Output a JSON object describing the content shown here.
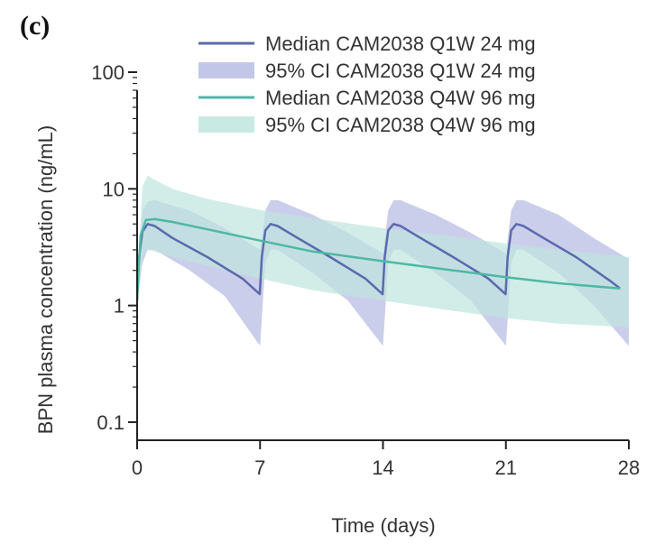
{
  "panel_label": "(c)",
  "colors": {
    "q1w_line": "#5b6aad",
    "q1w_band": "#b9bde3",
    "q4w_line": "#4db8a4",
    "q4w_band": "#bfe6de",
    "axis": "#222222"
  },
  "chart_data": {
    "type": "line",
    "xlabel": "Time (days)",
    "ylabel": "BPN plasma concentration (ng/mL)",
    "xlim": [
      0,
      28
    ],
    "ylim": [
      0.07,
      100
    ],
    "y_scale": "log",
    "x_ticks": [
      0,
      7,
      14,
      21,
      28
    ],
    "x_tick_labels": [
      "0",
      "7",
      "14",
      "21",
      "28"
    ],
    "y_ticks": [
      0.1,
      1,
      10,
      100
    ],
    "y_tick_labels": [
      "0.1",
      "1",
      "10",
      "100"
    ],
    "legend_position": "top-right",
    "legend": [
      {
        "label": "Median CAM2038 Q1W 24 mg",
        "kind": "line",
        "color": "#5b6aad"
      },
      {
        "label": "95% CI CAM2038 Q1W 24 mg",
        "kind": "band",
        "color": "#b9bde3"
      },
      {
        "label": "Median CAM2038 Q4W 96 mg",
        "kind": "line",
        "color": "#4db8a4"
      },
      {
        "label": "95% CI CAM2038 Q4W 96 mg",
        "kind": "band",
        "color": "#bfe6de"
      }
    ],
    "series": [
      {
        "name": "Median CAM2038 Q1W 24 mg",
        "x": [
          0,
          0.1,
          0.3,
          0.6,
          1,
          2,
          4,
          6,
          6.98,
          7.1,
          7.3,
          7.6,
          8,
          9,
          11,
          13,
          13.98,
          14.1,
          14.3,
          14.6,
          15,
          16,
          18,
          20,
          20.98,
          21.1,
          21.3,
          21.6,
          22,
          23,
          25,
          27,
          27.5
        ],
        "y": [
          1.1,
          2.5,
          4.3,
          5.0,
          4.8,
          3.8,
          2.6,
          1.7,
          1.25,
          2.6,
          4.4,
          5.0,
          4.8,
          3.9,
          2.6,
          1.7,
          1.25,
          2.6,
          4.4,
          5.0,
          4.8,
          3.9,
          2.6,
          1.7,
          1.25,
          2.6,
          4.4,
          5.0,
          4.8,
          3.9,
          2.6,
          1.6,
          1.4
        ]
      },
      {
        "name": "95% CI CAM2038 Q1W 24 mg",
        "band": true,
        "x": [
          0,
          0.3,
          0.6,
          1,
          3,
          5,
          7,
          7.3,
          7.6,
          8,
          10,
          12,
          14,
          14.3,
          14.6,
          15,
          17,
          19,
          21,
          21.3,
          21.6,
          22,
          24,
          26,
          28
        ],
        "lower": [
          1.0,
          2.3,
          3.0,
          3.0,
          2.0,
          1.2,
          0.45,
          2.3,
          3.0,
          3.0,
          1.9,
          1.1,
          0.45,
          2.3,
          3.0,
          3.0,
          1.9,
          1.1,
          0.45,
          2.3,
          3.0,
          3.0,
          1.9,
          1.0,
          0.45
        ],
        "upper": [
          1.3,
          6.5,
          7.8,
          8.0,
          6.5,
          4.6,
          3.0,
          6.5,
          8.0,
          8.0,
          6.0,
          4.2,
          2.8,
          6.5,
          8.0,
          8.0,
          6.0,
          4.2,
          2.8,
          6.5,
          8.0,
          8.0,
          6.0,
          3.8,
          2.5
        ]
      },
      {
        "name": "Median CAM2038 Q4W 96 mg",
        "x": [
          0,
          0.2,
          0.5,
          1,
          2,
          4,
          7,
          10,
          14,
          18,
          21,
          24,
          27.5
        ],
        "y": [
          1.2,
          4.0,
          5.4,
          5.5,
          5.2,
          4.5,
          3.6,
          2.9,
          2.4,
          2.0,
          1.75,
          1.55,
          1.4
        ]
      },
      {
        "name": "95% CI CAM2038 Q4W 96 mg",
        "band": true,
        "x": [
          0,
          0.3,
          0.6,
          1,
          2,
          4,
          7,
          10,
          14,
          18,
          21,
          24,
          28
        ],
        "lower": [
          1.0,
          2.5,
          3.0,
          2.9,
          2.6,
          2.2,
          1.7,
          1.35,
          1.1,
          0.9,
          0.78,
          0.7,
          0.65
        ],
        "upper": [
          1.5,
          10.5,
          13.0,
          12.0,
          10.0,
          8.2,
          6.6,
          5.6,
          4.6,
          3.9,
          3.4,
          3.0,
          2.6
        ]
      }
    ]
  }
}
